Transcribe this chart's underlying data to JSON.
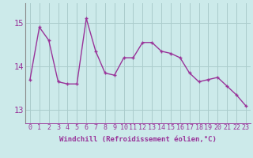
{
  "x": [
    0,
    1,
    2,
    3,
    4,
    5,
    6,
    7,
    8,
    9,
    10,
    11,
    12,
    13,
    14,
    15,
    16,
    17,
    18,
    19,
    20,
    21,
    22,
    23
  ],
  "y": [
    13.7,
    14.9,
    14.6,
    13.65,
    13.6,
    13.6,
    15.1,
    14.35,
    13.85,
    13.8,
    14.2,
    14.2,
    14.55,
    14.55,
    14.35,
    14.3,
    14.2,
    13.85,
    13.65,
    13.7,
    13.75,
    13.55,
    13.35,
    13.1
  ],
  "line_color": "#993399",
  "marker": "+",
  "marker_size": 3,
  "linewidth": 1.0,
  "xlabel": "Windchill (Refroidissement éolien,°C)",
  "xlabel_fontsize": 6.5,
  "xtick_labels": [
    "0",
    "1",
    "2",
    "3",
    "4",
    "5",
    "6",
    "7",
    "8",
    "9",
    "10",
    "11",
    "12",
    "13",
    "14",
    "15",
    "16",
    "17",
    "18",
    "19",
    "20",
    "21",
    "22",
    "23"
  ],
  "ytick_values": [
    13,
    14,
    15
  ],
  "ylim": [
    12.7,
    15.45
  ],
  "xlim": [
    -0.5,
    23.5
  ],
  "background_color": "#cceaea",
  "grid_color": "#aacccc",
  "tick_color": "#993399",
  "tick_fontsize": 6.0,
  "ytick_fontsize": 7.5,
  "left_spine_color": "#888888"
}
